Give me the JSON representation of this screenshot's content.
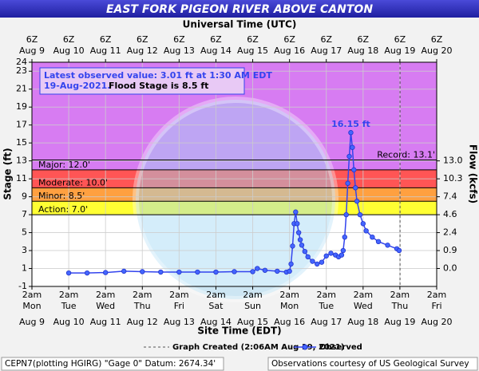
{
  "chart_data": {
    "type": "line",
    "title": "EAST FORK PIGEON RIVER ABOVE CANTON",
    "top_axis_label": "Universal Time (UTC)",
    "xlabel": "Site Time (EDT)",
    "ylabel": "Stage (ft)",
    "y2label": "Flow (kcfs)",
    "xlim": [
      "2021-08-09T02:00",
      "2021-08-20T02:00"
    ],
    "xticks": [
      {
        "value": "2021-08-09T02:00",
        "label": [
          "2am",
          "Mon",
          "Aug 9"
        ]
      },
      {
        "value": "2021-08-10T02:00",
        "label": [
          "2am",
          "Tue",
          "Aug 10"
        ]
      },
      {
        "value": "2021-08-11T02:00",
        "label": [
          "2am",
          "Wed",
          "Aug 11"
        ]
      },
      {
        "value": "2021-08-12T02:00",
        "label": [
          "2am",
          "Thu",
          "Aug 12"
        ]
      },
      {
        "value": "2021-08-13T02:00",
        "label": [
          "2am",
          "Fri",
          "Aug 13"
        ]
      },
      {
        "value": "2021-08-14T02:00",
        "label": [
          "2am",
          "Sat",
          "Aug 14"
        ]
      },
      {
        "value": "2021-08-15T02:00",
        "label": [
          "2am",
          "Sun",
          "Aug 15"
        ]
      },
      {
        "value": "2021-08-16T02:00",
        "label": [
          "2am",
          "Mon",
          "Aug 16"
        ]
      },
      {
        "value": "2021-08-17T02:00",
        "label": [
          "2am",
          "Tue",
          "Aug 17"
        ]
      },
      {
        "value": "2021-08-18T02:00",
        "label": [
          "2am",
          "Wed",
          "Aug 18"
        ]
      },
      {
        "value": "2021-08-19T02:00",
        "label": [
          "2am",
          "Thu",
          "Aug 19"
        ]
      },
      {
        "value": "2021-08-20T02:00",
        "label": [
          "2am",
          "Fri",
          "Aug 20"
        ]
      }
    ],
    "x2ticks": [
      {
        "value": "2021-08-09T02:00",
        "label": [
          "6Z",
          "Aug 9"
        ]
      },
      {
        "value": "2021-08-10T02:00",
        "label": [
          "6Z",
          "Aug 10"
        ]
      },
      {
        "value": "2021-08-11T02:00",
        "label": [
          "6Z",
          "Aug 11"
        ]
      },
      {
        "value": "2021-08-12T02:00",
        "label": [
          "6Z",
          "Aug 12"
        ]
      },
      {
        "value": "2021-08-13T02:00",
        "label": [
          "6Z",
          "Aug 13"
        ]
      },
      {
        "value": "2021-08-14T02:00",
        "label": [
          "6Z",
          "Aug 14"
        ]
      },
      {
        "value": "2021-08-15T02:00",
        "label": [
          "6Z",
          "Aug 15"
        ]
      },
      {
        "value": "2021-08-16T02:00",
        "label": [
          "6Z",
          "Aug 16"
        ]
      },
      {
        "value": "2021-08-17T02:00",
        "label": [
          "6Z",
          "Aug 17"
        ]
      },
      {
        "value": "2021-08-18T02:00",
        "label": [
          "6Z",
          "Aug 18"
        ]
      },
      {
        "value": "2021-08-19T02:00",
        "label": [
          "6Z",
          "Aug 19"
        ]
      },
      {
        "value": "2021-08-20T02:00",
        "label": [
          "6Z",
          "Aug 20"
        ]
      }
    ],
    "ylim": [
      -1,
      24
    ],
    "yticks": [
      -1,
      1,
      3,
      5,
      7,
      9,
      11,
      13,
      15,
      17,
      19,
      21,
      23,
      24
    ],
    "y2ticks": [
      {
        "stage": 13,
        "value": 13.0,
        "label": "13.0"
      },
      {
        "stage": 11,
        "value": 10.3,
        "label": "10.3"
      },
      {
        "stage": 9,
        "value": 7.4,
        "label": "7.4"
      },
      {
        "stage": 7,
        "value": 4.6,
        "label": "4.6"
      },
      {
        "stage": 5,
        "value": 2.4,
        "label": "2.4"
      },
      {
        "stage": 3,
        "value": 0.9,
        "label": "0.9"
      },
      {
        "stage": 1,
        "value": 0.0,
        "label": "0.0"
      }
    ],
    "grid": true,
    "flood_levels": [
      {
        "label": "Action: 7.0'",
        "value": 7.0,
        "color": "#ffff33"
      },
      {
        "label": "Minor: 8.5'",
        "value": 8.5,
        "color": "#ffa040"
      },
      {
        "label": "Moderate: 10.0'",
        "value": 10.0,
        "color": "#ff5555"
      },
      {
        "label": "Major: 12.0'",
        "value": 12.0,
        "color": "#d77cf2"
      }
    ],
    "record": {
      "label": "Record: 13.1'",
      "value": 13.1
    },
    "info": {
      "line1": "Latest observed value: 3.01 ft at 1:30 AM EDT",
      "date": "19-Aug-2021.",
      "flood_stage": "Flood Stage is 8.5 ft"
    },
    "peak_label": "16.15 ft",
    "graph_created": {
      "time": "2021-08-19T02:06",
      "label": "Graph Created (2:06AM Aug 19, 2021)"
    },
    "x": [
      "2021-08-10T02:00",
      "2021-08-10T14:00",
      "2021-08-11T02:00",
      "2021-08-11T14:00",
      "2021-08-12T02:00",
      "2021-08-12T14:00",
      "2021-08-13T02:00",
      "2021-08-13T14:00",
      "2021-08-14T02:00",
      "2021-08-14T14:00",
      "2021-08-15T02:00",
      "2021-08-15T05:00",
      "2021-08-15T10:00",
      "2021-08-15T18:00",
      "2021-08-16T00:00",
      "2021-08-16T02:00",
      "2021-08-16T03:00",
      "2021-08-16T04:00",
      "2021-08-16T05:00",
      "2021-08-16T06:00",
      "2021-08-16T07:00",
      "2021-08-16T08:00",
      "2021-08-16T09:00",
      "2021-08-16T10:00",
      "2021-08-16T12:00",
      "2021-08-16T14:00",
      "2021-08-16T17:00",
      "2021-08-16T20:00",
      "2021-08-16T23:00",
      "2021-08-17T02:00",
      "2021-08-17T05:00",
      "2021-08-17T08:00",
      "2021-08-17T10:00",
      "2021-08-17T12:00",
      "2021-08-17T13:00",
      "2021-08-17T14:00",
      "2021-08-17T15:00",
      "2021-08-17T16:00",
      "2021-08-17T17:00",
      "2021-08-17T18:00",
      "2021-08-17T19:00",
      "2021-08-17T20:00",
      "2021-08-17T21:00",
      "2021-08-17T22:00",
      "2021-08-18T00:00",
      "2021-08-18T02:00",
      "2021-08-18T04:00",
      "2021-08-18T08:00",
      "2021-08-18T12:00",
      "2021-08-18T18:00",
      "2021-08-19T00:00",
      "2021-08-19T01:30"
    ],
    "series": [
      {
        "name": "Observed",
        "color": "#3344ee",
        "values": [
          0.5,
          0.5,
          0.55,
          0.7,
          0.65,
          0.6,
          0.6,
          0.6,
          0.6,
          0.65,
          0.65,
          1.0,
          0.8,
          0.7,
          0.6,
          0.7,
          1.5,
          3.5,
          6.0,
          7.3,
          6.0,
          5.0,
          4.2,
          3.6,
          2.9,
          2.3,
          1.8,
          1.5,
          1.7,
          2.4,
          2.7,
          2.5,
          2.3,
          2.5,
          3.0,
          4.5,
          7.0,
          10.5,
          13.5,
          16.15,
          14.5,
          12.0,
          10.0,
          8.5,
          7.0,
          6.0,
          5.2,
          4.5,
          4.0,
          3.6,
          3.2,
          3.01
        ]
      }
    ],
    "footer_left": "CEPN7(plotting HGIRG) \"Gage 0\" Datum: 2674.34'",
    "footer_right": "Observations courtesy of US Geological Survey"
  }
}
